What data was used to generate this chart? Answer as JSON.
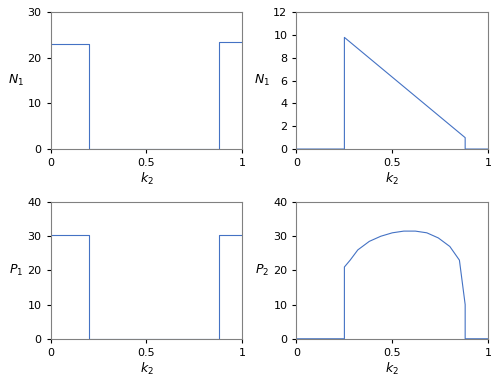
{
  "top_left": {
    "ylabel": "N_1",
    "xlabel": "k_2",
    "ylim": [
      0,
      30
    ],
    "xlim": [
      0,
      1
    ],
    "yticks": [
      0,
      10,
      20,
      30
    ],
    "xticks": [
      0,
      0.5,
      1
    ],
    "xticklabels": [
      "0",
      "0.5",
      "1"
    ],
    "yticklabels": [
      "0",
      "10",
      "20",
      "30"
    ],
    "x": [
      0,
      0.2,
      0.2,
      0.88,
      0.88,
      1.0
    ],
    "y": [
      23,
      23,
      0,
      0,
      23.5,
      23.5
    ]
  },
  "top_right": {
    "ylabel": "N_1",
    "xlabel": "k_2",
    "ylim": [
      0,
      12
    ],
    "xlim": [
      0,
      1
    ],
    "yticks": [
      0,
      2,
      4,
      6,
      8,
      10,
      12
    ],
    "xticks": [
      0,
      0.5,
      1
    ],
    "xticklabels": [
      "0",
      "0.5",
      "1"
    ],
    "yticklabels": [
      "0",
      "2",
      "4",
      "6",
      "8",
      "10",
      "12"
    ],
    "x": [
      0,
      0.25,
      0.25,
      0.88,
      0.88,
      1.0
    ],
    "y": [
      0,
      0,
      9.8,
      1.0,
      0,
      0
    ]
  },
  "bottom_left": {
    "ylabel": "P_1",
    "xlabel": "k_2",
    "ylim": [
      0,
      40
    ],
    "xlim": [
      0,
      1
    ],
    "yticks": [
      0,
      10,
      20,
      30,
      40
    ],
    "xticks": [
      0,
      0.5,
      1
    ],
    "xticklabels": [
      "0",
      "0.5",
      "1"
    ],
    "yticklabels": [
      "0",
      "10",
      "20",
      "30",
      "40"
    ],
    "x": [
      0,
      0.2,
      0.2,
      0.88,
      0.88,
      1.0
    ],
    "y": [
      30.5,
      30.5,
      0,
      0,
      30.5,
      30.5
    ]
  },
  "bottom_right": {
    "ylabel": "P_2",
    "xlabel": "k_2",
    "ylim": [
      0,
      40
    ],
    "xlim": [
      0,
      1
    ],
    "yticks": [
      0,
      10,
      20,
      30,
      40
    ],
    "xticks": [
      0,
      0.5,
      1
    ],
    "xticklabels": [
      "0",
      "0.5",
      "1"
    ],
    "yticklabels": [
      "0",
      "10",
      "20",
      "30",
      "40"
    ],
    "curve_x": [
      0,
      0.25,
      0.25,
      0.28,
      0.32,
      0.38,
      0.44,
      0.5,
      0.56,
      0.62,
      0.68,
      0.74,
      0.8,
      0.85,
      0.88,
      0.88,
      1.0
    ],
    "curve_y": [
      0,
      0,
      21,
      23,
      26,
      28.5,
      30,
      31,
      31.5,
      31.5,
      31,
      29.5,
      27,
      23,
      10,
      0,
      0
    ]
  },
  "line_color": "#4472C4",
  "line_width": 0.8,
  "spine_color": "#808080",
  "figsize": [
    5.0,
    3.85
  ],
  "dpi": 100
}
